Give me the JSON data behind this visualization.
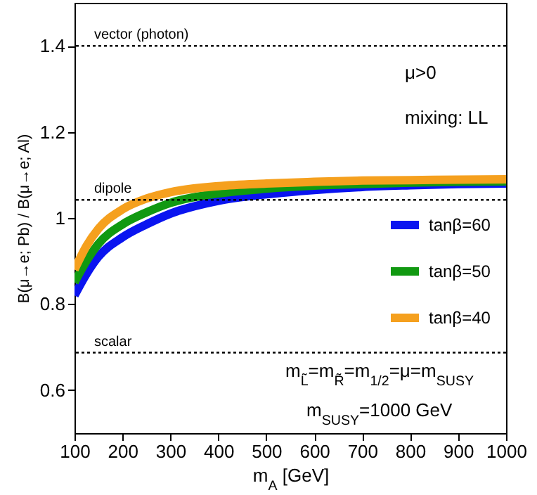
{
  "chart_data": {
    "type": "line",
    "xlabel": "m$_{A}$ [GeV]",
    "ylabel": "B(μ→e; Pb) / B(μ→e; Al)",
    "x": [
      100,
      125,
      150,
      200,
      250,
      300,
      400,
      500,
      600,
      700,
      800,
      900,
      1000
    ],
    "series": [
      {
        "name": "tanβ=60",
        "color": "#0a14f0",
        "values": [
          0.82,
          0.87,
          0.91,
          0.955,
          0.985,
          1.01,
          1.04,
          1.055,
          1.065,
          1.072,
          1.076,
          1.079,
          1.08
        ]
      },
      {
        "name": "tanβ=50",
        "color": "#119911",
        "values": [
          0.85,
          0.9,
          0.94,
          0.985,
          1.013,
          1.035,
          1.057,
          1.068,
          1.075,
          1.079,
          1.082,
          1.084,
          1.085
        ]
      },
      {
        "name": "tanβ=40",
        "color": "#f5a01e",
        "values": [
          0.88,
          0.935,
          0.975,
          1.02,
          1.045,
          1.06,
          1.074,
          1.08,
          1.084,
          1.087,
          1.088,
          1.089,
          1.09
        ]
      }
    ],
    "xlim": [
      100,
      1000
    ],
    "xticks": [
      100,
      200,
      300,
      400,
      500,
      600,
      700,
      800,
      900,
      1000
    ],
    "ylim": [
      0.5,
      1.5
    ],
    "yticks": [
      0.6,
      0.8,
      1,
      1.2,
      1.4
    ],
    "ref_lines": [
      {
        "axis": "y",
        "value": 1.4,
        "label": "vector (photon)",
        "color": "#000000",
        "line_style": "dotted"
      },
      {
        "axis": "y",
        "value": 1.042,
        "label": "dipole",
        "color": "#000000",
        "line_style": "dotted"
      },
      {
        "axis": "y",
        "value": 0.687,
        "label": "scalar",
        "color": "#000000",
        "line_style": "dotted"
      }
    ],
    "annotations": [
      "μ>0",
      "mixing: LL",
      "m$_{L̃}$=m$_{R̃}$=m$_{1/2}$=μ=m$_{SUSY}$",
      "m$_{SUSY}$=1000 GeV"
    ],
    "legend": "right",
    "grid": false,
    "marker": "none",
    "line_style": "solid"
  }
}
